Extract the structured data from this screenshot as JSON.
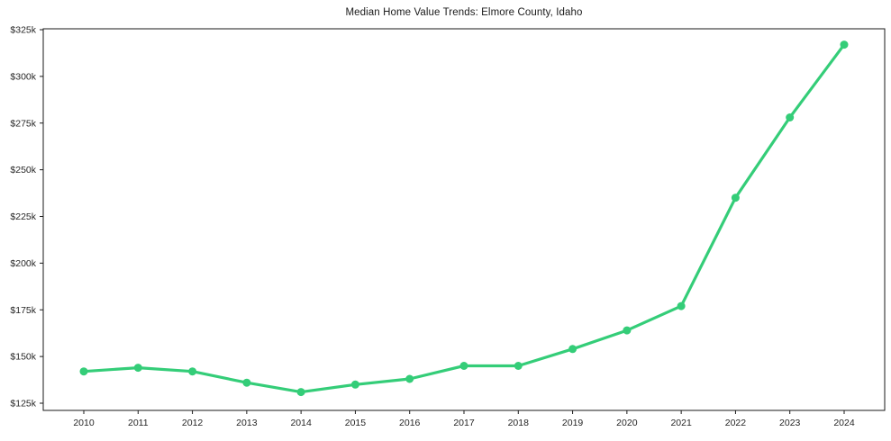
{
  "chart_data": {
    "type": "line",
    "title": "Median Home Value Trends: Elmore County, Idaho",
    "xlabel": "",
    "ylabel": "",
    "unit": "USD thousands",
    "categories": [
      2010,
      2011,
      2012,
      2013,
      2014,
      2015,
      2016,
      2017,
      2018,
      2019,
      2020,
      2021,
      2022,
      2023,
      2024
    ],
    "x_tick_labels": [
      "2010",
      "2011",
      "2012",
      "2013",
      "2014",
      "2015",
      "2016",
      "2017",
      "2018",
      "2019",
      "2020",
      "2021",
      "2022",
      "2023",
      "2024"
    ],
    "series": [
      {
        "name": "Median Home Value",
        "values": [
          142,
          144,
          142,
          136,
          131,
          135,
          138,
          145,
          145,
          154,
          164,
          177,
          235,
          278,
          317
        ]
      }
    ],
    "y_ticks": [
      125,
      150,
      175,
      200,
      225,
      250,
      275,
      300,
      325
    ],
    "y_tick_labels": [
      "$125k",
      "$150k",
      "$175k",
      "$200k",
      "$225k",
      "$250k",
      "$275k",
      "$300k",
      "$325k"
    ],
    "ylim": [
      121,
      326
    ],
    "grid": "off",
    "legend": "none",
    "line_color": "#34cd78",
    "marker": "circle",
    "axis_color": "#1a1a1a",
    "text_color": "#262626"
  }
}
